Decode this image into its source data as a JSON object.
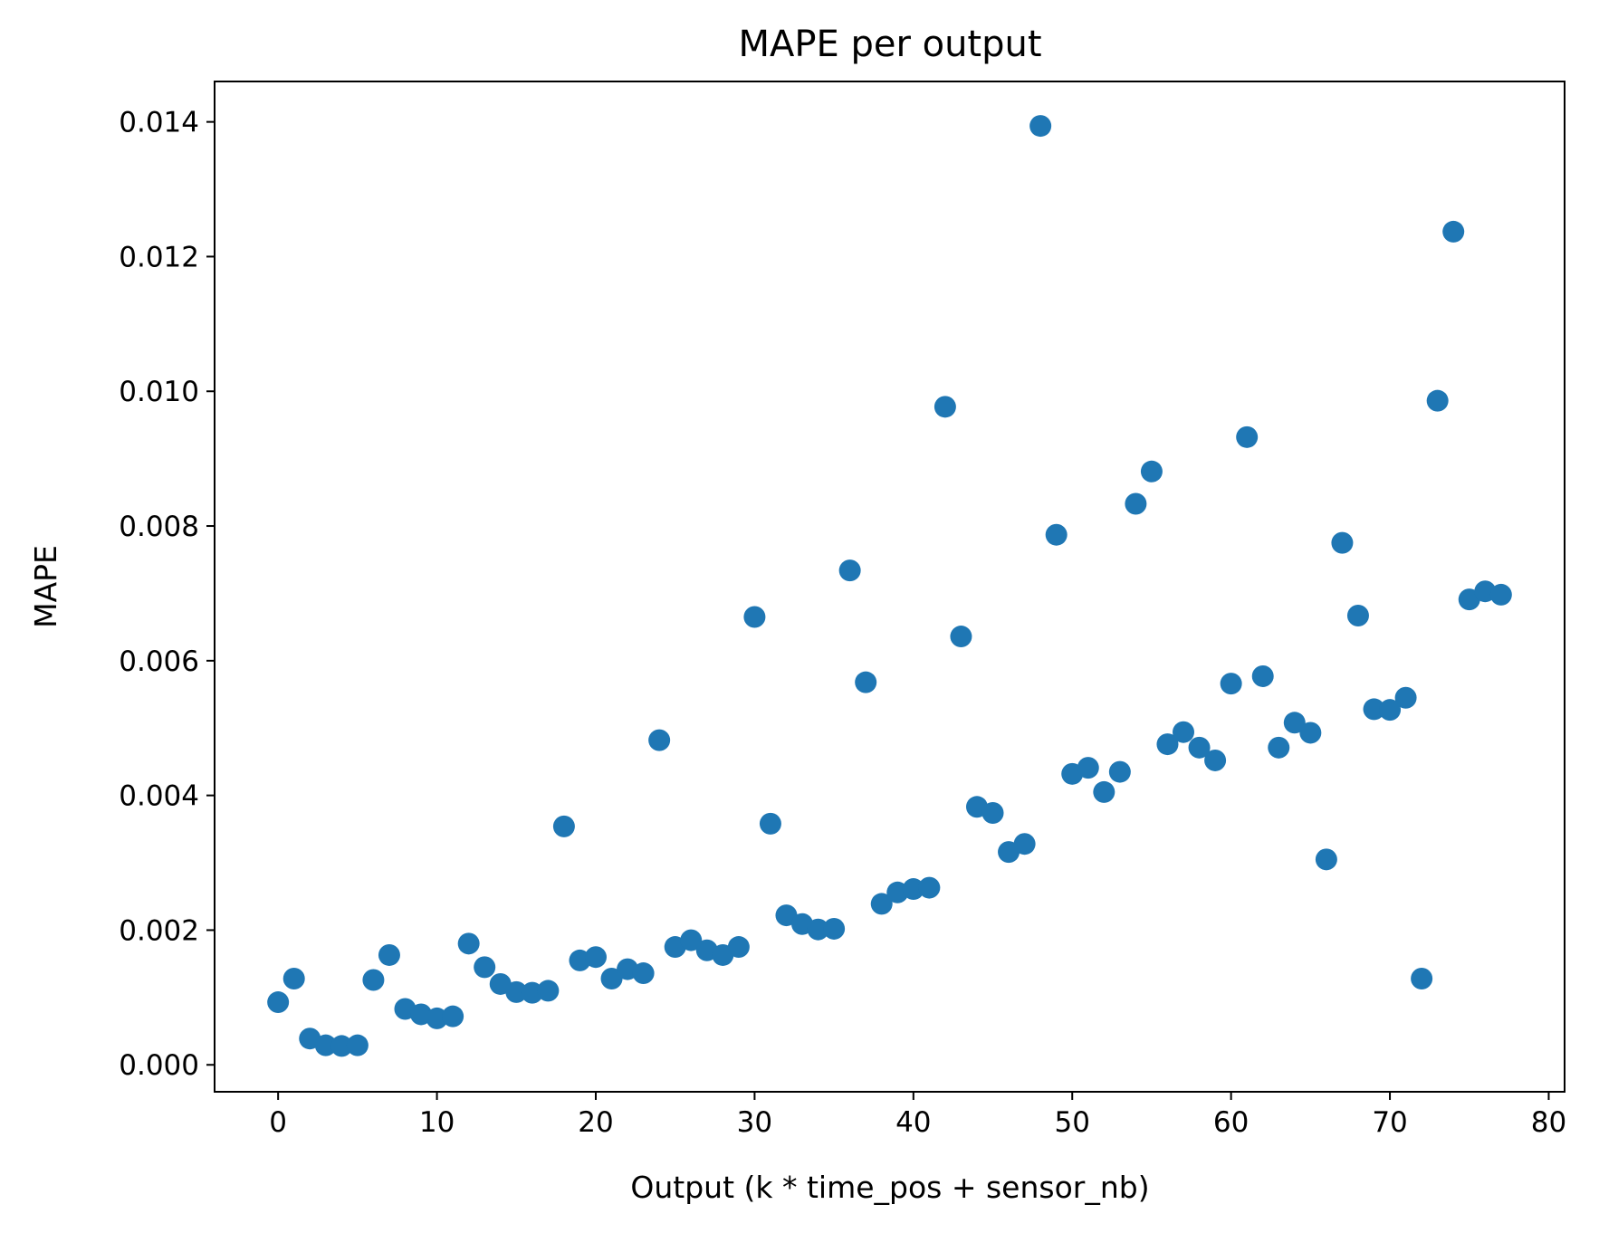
{
  "chart_data": {
    "type": "scatter",
    "title": "MAPE per output",
    "xlabel": "Output (k * time_pos + sensor_nb)",
    "ylabel": "MAPE",
    "xlim": [
      -4,
      81
    ],
    "ylim": [
      -0.0004,
      0.0146
    ],
    "x_ticks": [
      0,
      10,
      20,
      30,
      40,
      50,
      60,
      70,
      80
    ],
    "x_tick_labels": [
      "0",
      "10",
      "20",
      "30",
      "40",
      "50",
      "60",
      "70",
      "80"
    ],
    "y_ticks": [
      0.0,
      0.002,
      0.004,
      0.006,
      0.008,
      0.01,
      0.012,
      0.014
    ],
    "y_tick_labels": [
      "0.000",
      "0.002",
      "0.004",
      "0.006",
      "0.008",
      "0.010",
      "0.012",
      "0.014"
    ],
    "grid": false,
    "legend": "none",
    "marker_color": "#1f77b4",
    "series": [
      {
        "x": [
          0,
          1,
          2,
          3,
          4,
          5,
          6,
          7,
          8,
          9,
          10,
          11,
          12,
          13,
          14,
          15,
          16,
          17,
          18,
          19,
          20,
          21,
          22,
          23,
          24,
          25,
          26,
          27,
          28,
          29,
          30,
          31,
          32,
          33,
          34,
          35,
          36,
          37,
          38,
          39,
          40,
          41,
          42,
          43,
          44,
          45,
          46,
          47,
          48,
          49,
          50,
          51,
          52,
          53,
          54,
          55,
          56,
          57,
          58,
          59,
          60,
          61,
          62,
          63,
          64,
          65,
          66,
          67,
          68,
          69,
          70,
          71,
          72,
          73,
          74,
          75,
          76,
          77
        ],
        "y": [
          0.00093,
          0.00128,
          0.00039,
          0.00029,
          0.00028,
          0.00029,
          0.00126,
          0.00163,
          0.00083,
          0.00075,
          0.00069,
          0.00072,
          0.0018,
          0.00145,
          0.0012,
          0.00108,
          0.00107,
          0.0011,
          0.00354,
          0.00155,
          0.0016,
          0.00128,
          0.00142,
          0.00136,
          0.00482,
          0.00175,
          0.00185,
          0.0017,
          0.00163,
          0.00175,
          0.00665,
          0.00358,
          0.00222,
          0.00209,
          0.00201,
          0.00202,
          0.00734,
          0.00568,
          0.00239,
          0.00256,
          0.00261,
          0.00263,
          0.00977,
          0.00636,
          0.00383,
          0.00374,
          0.00316,
          0.00328,
          0.01394,
          0.00787,
          0.00432,
          0.00441,
          0.00405,
          0.00435,
          0.00833,
          0.00881,
          0.00476,
          0.00494,
          0.00471,
          0.00452,
          0.00566,
          0.00932,
          0.00577,
          0.00471,
          0.00508,
          0.00493,
          0.00305,
          0.00775,
          0.00667,
          0.00528,
          0.00527,
          0.00545,
          0.00128,
          0.00986,
          0.01237,
          0.00691,
          0.00703,
          0.00698
        ]
      }
    ]
  }
}
